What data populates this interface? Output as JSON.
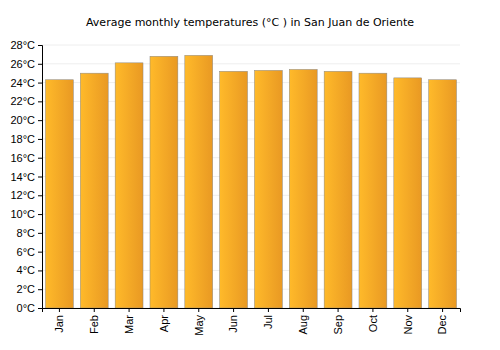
{
  "chart_data": {
    "type": "bar",
    "title": "Average monthly temperatures (°C ) in San Juan de Oriente",
    "categories": [
      "Jan",
      "Feb",
      "Mar",
      "Apr",
      "May",
      "Jun",
      "Jul",
      "Aug",
      "Sep",
      "Oct",
      "Nov",
      "Dec"
    ],
    "values": [
      24.3,
      25.0,
      26.1,
      26.8,
      26.9,
      25.2,
      25.3,
      25.4,
      25.2,
      25.0,
      24.5,
      24.3
    ],
    "color": "#ffa726",
    "ylim": [
      0,
      28
    ],
    "yticks": [
      {
        "value": 0,
        "label": "0°C"
      },
      {
        "value": 2,
        "label": "2°C"
      },
      {
        "value": 4,
        "label": "4°C"
      },
      {
        "value": 6,
        "label": "6°C"
      },
      {
        "value": 8,
        "label": "8°C"
      },
      {
        "value": 10,
        "label": "10°C"
      },
      {
        "value": 12,
        "label": "12°C"
      },
      {
        "value": 14,
        "label": "14°C"
      },
      {
        "value": 16,
        "label": "16°C"
      },
      {
        "value": 18,
        "label": "18°C"
      },
      {
        "value": 20,
        "label": "20°C"
      },
      {
        "value": 22,
        "label": "22°C"
      },
      {
        "value": 24,
        "label": "24°C"
      },
      {
        "value": 26,
        "label": "26°C"
      },
      {
        "value": 28,
        "label": "28°C"
      }
    ],
    "grid": true
  }
}
